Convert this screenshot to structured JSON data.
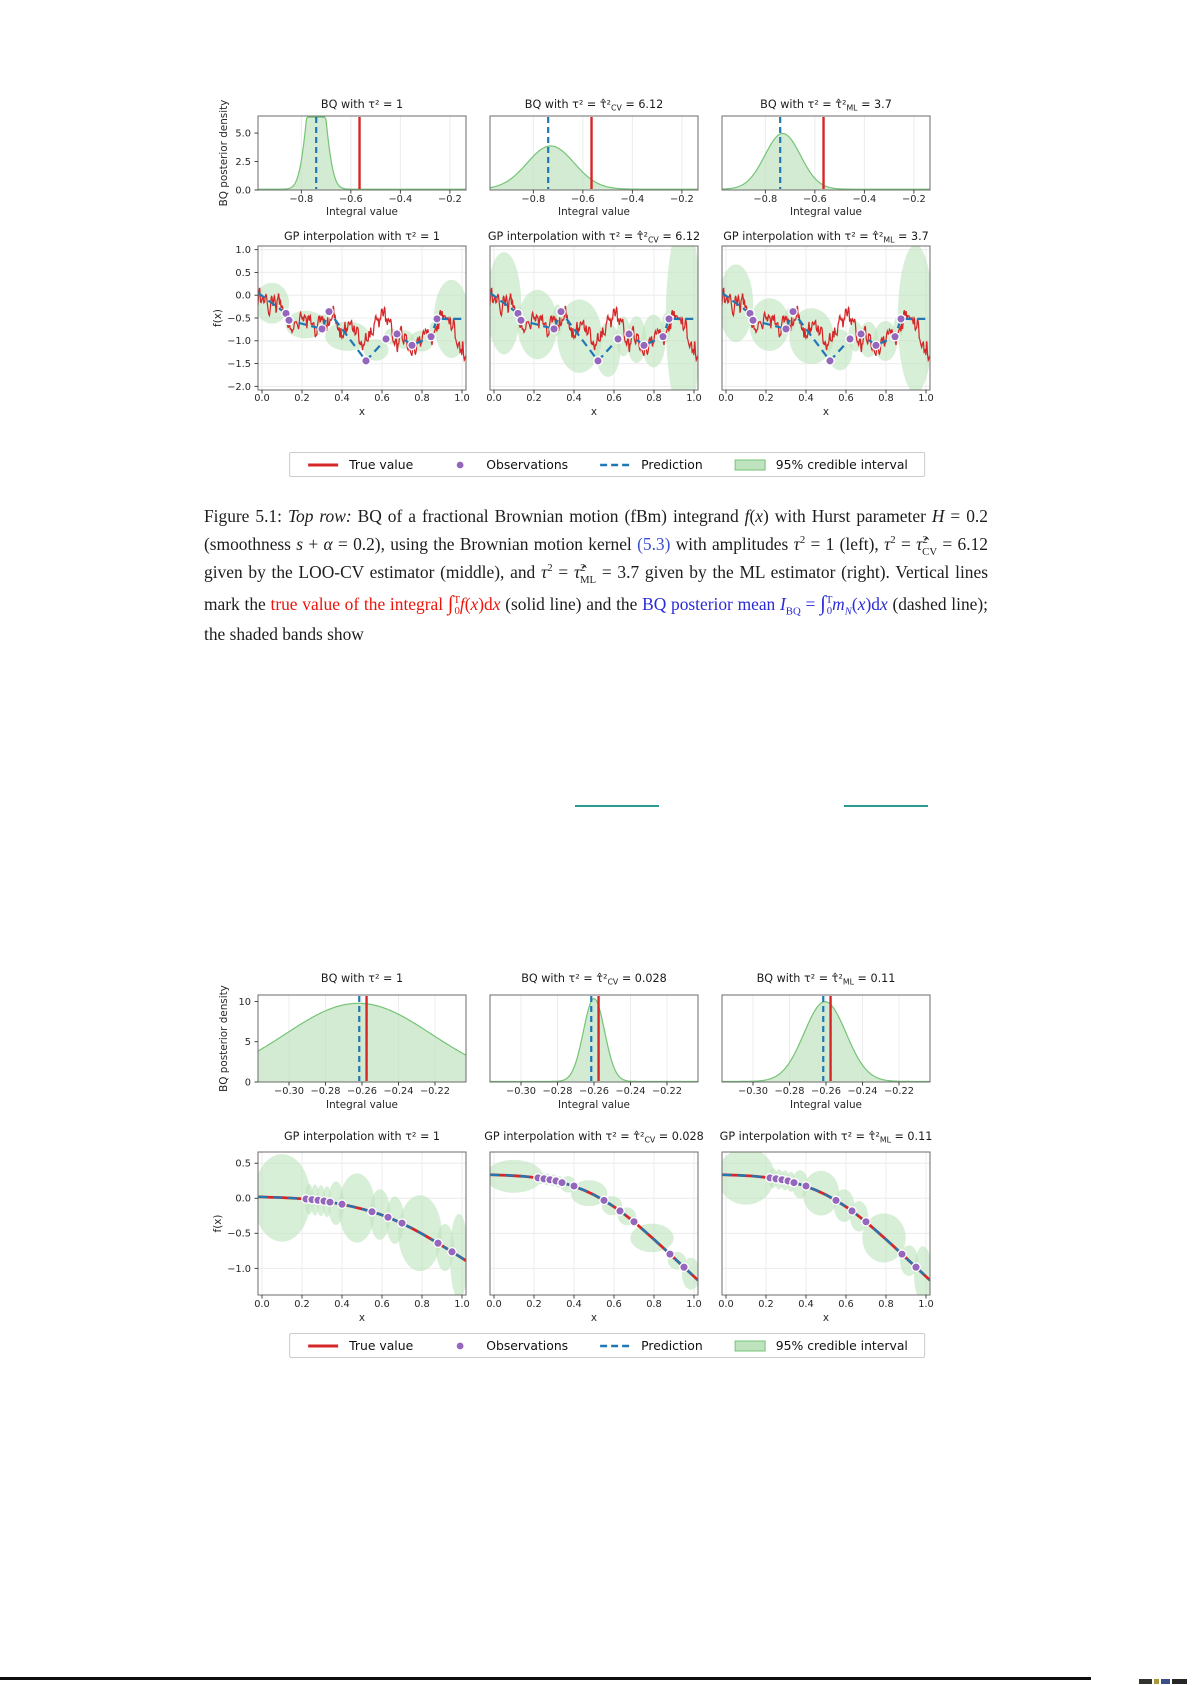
{
  "colors": {
    "true_red": "#d62728",
    "prediction_blue": "#2077b4",
    "observation_purple": "#9467bd",
    "band_green_fill": "#bfe3bf",
    "band_green_edge": "#74c476",
    "caption_red": "#ee1409",
    "caption_blue": "#2a2ad6",
    "link_blue": "#3c50cc",
    "teal_rule": "#2a9d8f",
    "text": "#1d1d1d"
  },
  "legend": {
    "items": [
      {
        "swatch": "line",
        "label": "True value"
      },
      {
        "swatch": "dot",
        "label": "Observations"
      },
      {
        "swatch": "dashes",
        "label": "Prediction"
      },
      {
        "swatch": "patch",
        "label": "95% credible interval"
      }
    ]
  },
  "caption": {
    "segments": [
      {
        "t": "Figure 5.1: ",
        "c": "k",
        "v": "n"
      },
      {
        "t": "Top row:",
        "c": "k",
        "v": "i"
      },
      {
        "t": " BQ of a fractional Brownian motion (fBm) integrand ",
        "c": "k",
        "v": "n"
      },
      {
        "t": "f",
        "c": "k",
        "v": "i"
      },
      {
        "t": "(",
        "c": "k",
        "v": "n"
      },
      {
        "t": "x",
        "c": "k",
        "v": "i"
      },
      {
        "t": ") with Hurst parameter ",
        "c": "k",
        "v": "n"
      },
      {
        "t": "H",
        "c": "k",
        "v": "i"
      },
      {
        "t": " = 0.2 (smoothness ",
        "c": "k",
        "v": "n"
      },
      {
        "t": "s",
        "c": "k",
        "v": "i"
      },
      {
        "t": " + ",
        "c": "k",
        "v": "n"
      },
      {
        "t": "α",
        "c": "k",
        "v": "i"
      },
      {
        "t": " = 0.2), using the Brownian motion kernel ",
        "c": "k",
        "v": "n"
      },
      {
        "t": "(5.3)",
        "c": "link",
        "v": "n"
      },
      {
        "t": " with amplitudes ",
        "c": "k",
        "v": "n"
      },
      {
        "t": "τ",
        "c": "k",
        "v": "i"
      },
      {
        "t": "2",
        "c": "k",
        "v": "sup"
      },
      {
        "t": " = 1 (left), ",
        "c": "k",
        "v": "n"
      },
      {
        "t": "τ",
        "c": "k",
        "v": "i"
      },
      {
        "t": "2",
        "c": "k",
        "v": "sup"
      },
      {
        "t": " = ",
        "c": "k",
        "v": "n"
      },
      {
        "t": "τ̂",
        "c": "k",
        "v": "i"
      },
      {
        "t": "2",
        "c": "k",
        "v": "sup"
      },
      {
        "t": "CV",
        "c": "k",
        "v": "sub"
      },
      {
        "t": " = 6.12 given by the LOO-CV estimator (middle), and ",
        "c": "k",
        "v": "n"
      },
      {
        "t": "τ",
        "c": "k",
        "v": "i"
      },
      {
        "t": "2",
        "c": "k",
        "v": "sup"
      },
      {
        "t": " = ",
        "c": "k",
        "v": "n"
      },
      {
        "t": "τ̂",
        "c": "k",
        "v": "i"
      },
      {
        "t": "2",
        "c": "k",
        "v": "sup"
      },
      {
        "t": "ML",
        "c": "k",
        "v": "sub"
      },
      {
        "t": " = 3.7 given by the ML estimator (right).  Vertical lines mark the ",
        "c": "k",
        "v": "n"
      },
      {
        "t": "true value of the integral ",
        "c": "r",
        "v": "n"
      },
      {
        "t": "∫",
        "c": "r",
        "v": "big"
      },
      {
        "t": "T",
        "c": "r",
        "v": "sup"
      },
      {
        "t": "0",
        "c": "r",
        "v": "sub"
      },
      {
        "t": "f",
        "c": "r",
        "v": "i"
      },
      {
        "t": "(",
        "c": "r",
        "v": "n"
      },
      {
        "t": "x",
        "c": "r",
        "v": "i"
      },
      {
        "t": ")d",
        "c": "r",
        "v": "n"
      },
      {
        "t": "x",
        "c": "r",
        "v": "i"
      },
      {
        "t": " (solid line) and the ",
        "c": "k",
        "v": "n"
      },
      {
        "t": "BQ posterior mean ",
        "c": "b",
        "v": "n"
      },
      {
        "t": "I",
        "c": "b",
        "v": "i"
      },
      {
        "t": "BQ",
        "c": "b",
        "v": "sub"
      },
      {
        "t": " = ",
        "c": "b",
        "v": "n"
      },
      {
        "t": "∫",
        "c": "b",
        "v": "big"
      },
      {
        "t": "T",
        "c": "b",
        "v": "sup"
      },
      {
        "t": "0",
        "c": "b",
        "v": "sub"
      },
      {
        "t": "m",
        "c": "b",
        "v": "i"
      },
      {
        "t": "N",
        "c": "b",
        "v": "subi"
      },
      {
        "t": "(",
        "c": "b",
        "v": "n"
      },
      {
        "t": "x",
        "c": "b",
        "v": "i"
      },
      {
        "t": ")d",
        "c": "b",
        "v": "n"
      },
      {
        "t": "x",
        "c": "b",
        "v": "i"
      },
      {
        "t": " (dashed line); the shaded bands show",
        "c": "k",
        "v": "n"
      }
    ]
  },
  "chart_data": [
    {
      "key": "top-figure",
      "bq_row": {
        "type": "area",
        "xlabel": "Integral value",
        "ylabel": "BQ posterior density",
        "xlim": [
          -0.975,
          -0.135
        ],
        "xticks": [
          -0.8,
          -0.6,
          -0.4,
          -0.2
        ],
        "xtick_labels": [
          "−0.8",
          "−0.6",
          "−0.4",
          "−0.2"
        ],
        "ylim": [
          0,
          6.5
        ],
        "yticks": [
          0,
          2.5,
          5
        ],
        "ytick_labels": [
          "0.0",
          "2.5",
          "5.0"
        ],
        "true_value_x": -0.565,
        "posterior_mean_x": -0.74,
        "panels": [
          {
            "title": {
              "pre": "BQ with τ² = 1"
            },
            "density": {
              "mu": -0.74,
              "sigma": 0.034,
              "peak": 12
            }
          },
          {
            "title": {
              "pre": "BQ with τ² = ",
              "hat": "τ̂²",
              "sub": "CV",
              "post": " = 6.12"
            },
            "density": {
              "mu": -0.73,
              "sigma": 0.095,
              "peak": 3.8
            }
          },
          {
            "title": {
              "pre": "BQ with τ² = ",
              "hat": "τ̂²",
              "sub": "ML",
              "post": " = 3.7"
            },
            "density": {
              "mu": -0.73,
              "sigma": 0.072,
              "peak": 4.9
            }
          }
        ]
      },
      "gp_row": {
        "type": "line",
        "xlabel": "x",
        "ylabel": "f(x)",
        "xlim": [
          -0.02,
          1.02
        ],
        "xticks": [
          0,
          0.2,
          0.4,
          0.6,
          0.8,
          1
        ],
        "xtick_labels": [
          "0.0",
          "0.2",
          "0.4",
          "0.6",
          "0.8",
          "1.0"
        ],
        "ylim": [
          -2.08,
          1.08
        ],
        "yticks": [
          1,
          0.5,
          0,
          -0.5,
          -1,
          -1.5,
          -2
        ],
        "ytick_labels": [
          "1.0",
          "0.5",
          "0.0",
          "−0.5",
          "−1.0",
          "−1.5",
          "−2.0"
        ],
        "observations": [
          [
            0.12,
            -0.4
          ],
          [
            0.135,
            -0.55
          ],
          [
            0.3,
            -0.74
          ],
          [
            0.335,
            -0.36
          ],
          [
            0.52,
            -1.44
          ],
          [
            0.62,
            -0.96
          ],
          [
            0.675,
            -0.85
          ],
          [
            0.75,
            -1.1
          ],
          [
            0.845,
            -0.91
          ],
          [
            0.875,
            -0.52
          ]
        ],
        "prediction": [
          [
            -0.02,
            0.05
          ],
          [
            0.12,
            -0.4
          ],
          [
            0.135,
            -0.55
          ],
          [
            0.3,
            -0.74
          ],
          [
            0.335,
            -0.36
          ],
          [
            0.52,
            -1.44
          ],
          [
            0.62,
            -0.96
          ],
          [
            0.675,
            -0.85
          ],
          [
            0.75,
            -1.1
          ],
          [
            0.845,
            -0.91
          ],
          [
            0.875,
            -0.52
          ],
          [
            1.02,
            -0.52
          ]
        ],
        "true_path": {
          "kind": "fbm",
          "seed": 20,
          "noise_amp": 0.5,
          "base": [
            [
              -0.02,
              0.05
            ],
            [
              0.04,
              -0.1
            ],
            [
              0.08,
              -0.25
            ],
            [
              0.12,
              -0.4
            ],
            [
              0.16,
              -0.5
            ],
            [
              0.2,
              -0.65
            ],
            [
              0.24,
              -0.45
            ],
            [
              0.28,
              -0.6
            ],
            [
              0.32,
              -0.5
            ],
            [
              0.36,
              -0.45
            ],
            [
              0.4,
              -0.75
            ],
            [
              0.44,
              -0.9
            ],
            [
              0.48,
              -1.1
            ],
            [
              0.52,
              -1.25
            ],
            [
              0.56,
              -1.0
            ],
            [
              0.6,
              -0.9
            ],
            [
              0.64,
              -0.75
            ],
            [
              0.68,
              -0.9
            ],
            [
              0.72,
              -1.05
            ],
            [
              0.76,
              -1.0
            ],
            [
              0.8,
              -0.85
            ],
            [
              0.84,
              -0.75
            ],
            [
              0.88,
              -0.6
            ],
            [
              0.92,
              -0.7
            ],
            [
              0.96,
              -1.0
            ],
            [
              1.02,
              -1.6
            ]
          ]
        },
        "edge_scale": [
          1.6,
          3
        ],
        "panels": [
          {
            "title": {
              "pre": "GP interpolation with τ² = 1"
            },
            "band_amp": 0.5
          },
          {
            "title": {
              "pre": "GP interpolation with τ² = ",
              "hat": "τ̂²",
              "sub": "CV",
              "post": " = 6.12"
            },
            "band_amp": 1.25
          },
          {
            "title": {
              "pre": "GP interpolation with τ² = ",
              "hat": "τ̂²",
              "sub": "ML",
              "post": " = 3.7"
            },
            "band_amp": 0.95
          }
        ]
      }
    },
    {
      "key": "bottom-figure",
      "bq_row": {
        "type": "area",
        "xlabel": "Integral value",
        "ylabel": "BQ posterior density",
        "xlim": [
          -0.317,
          -0.203
        ],
        "xticks": [
          -0.3,
          -0.28,
          -0.26,
          -0.24,
          -0.22
        ],
        "xtick_labels": [
          "−0.30",
          "−0.28",
          "−0.26",
          "−0.24",
          "−0.22"
        ],
        "ylim": [
          0,
          10.8
        ],
        "yticks": [
          0,
          5,
          10
        ],
        "ytick_labels": [
          "0",
          "5",
          "10"
        ],
        "true_value_x": -0.2575,
        "posterior_mean_x": -0.2615,
        "panels": [
          {
            "title": {
              "pre": "BQ with τ² = 1"
            },
            "density": {
              "mu": -0.262,
              "sigma": 0.04,
              "peak": 9.7
            }
          },
          {
            "title": {
              "pre": "BQ with τ² = ",
              "hat": "τ̂²",
              "sub": "CV",
              "post": " = 0.028"
            },
            "density": {
              "mu": -0.26,
              "sigma": 0.0058,
              "peak": 10.3
            }
          },
          {
            "title": {
              "pre": "BQ with τ² = ",
              "hat": "τ̂²",
              "sub": "ML",
              "post": " = 0.11"
            },
            "density": {
              "mu": -0.2605,
              "sigma": 0.0115,
              "peak": 9.9
            }
          }
        ]
      },
      "gp_row": {
        "type": "line",
        "xlabel": "x",
        "ylabel": "f(x)",
        "xlim": [
          -0.02,
          1.02
        ],
        "xticks": [
          0,
          0.2,
          0.4,
          0.6,
          0.8,
          1
        ],
        "xtick_labels": [
          "0.0",
          "0.2",
          "0.4",
          "0.6",
          "0.8",
          "1.0"
        ],
        "ylim": [
          -1.38,
          0.66
        ],
        "yticks": [
          0.5,
          0,
          -0.5,
          -1
        ],
        "ytick_labels": [
          "0.5",
          "0.0",
          "−0.5",
          "−1.0"
        ],
        "obs_x": [
          0.22,
          0.25,
          0.28,
          0.31,
          0.34,
          0.4,
          0.55,
          0.63,
          0.7,
          0.88,
          0.95
        ],
        "true_path": {
          "kind": "smooth"
        },
        "edge_scale": [
          1.0,
          1.8
        ],
        "curve_main": [
          [
            -0.02,
            0.335
          ],
          [
            0.1,
            0.325
          ],
          [
            0.2,
            0.3
          ],
          [
            0.3,
            0.255
          ],
          [
            0.4,
            0.175
          ],
          [
            0.5,
            0.055
          ],
          [
            0.6,
            -0.115
          ],
          [
            0.7,
            -0.335
          ],
          [
            0.8,
            -0.585
          ],
          [
            0.9,
            -0.85
          ],
          [
            1.02,
            -1.17
          ]
        ],
        "curve_left": [
          [
            -0.02,
            0.02
          ],
          [
            0.1,
            0.01
          ],
          [
            0.2,
            -0.005
          ],
          [
            0.3,
            -0.035
          ],
          [
            0.4,
            -0.085
          ],
          [
            0.5,
            -0.15
          ],
          [
            0.6,
            -0.235
          ],
          [
            0.7,
            -0.355
          ],
          [
            0.8,
            -0.505
          ],
          [
            0.9,
            -0.675
          ],
          [
            1.02,
            -0.89
          ]
        ],
        "panels": [
          {
            "title": {
              "pre": "GP interpolation with τ² = 1"
            },
            "band_amp": 0.85,
            "curve": "curve_left"
          },
          {
            "title": {
              "pre": "GP interpolation with τ² = ",
              "hat": "τ̂²",
              "sub": "CV",
              "post": " = 0.028"
            },
            "band_amp": 0.32,
            "curve": "curve_main"
          },
          {
            "title": {
              "pre": "GP interpolation with τ² = ",
              "hat": "τ̂²",
              "sub": "ML",
              "post": " = 0.11"
            },
            "band_amp": 0.55,
            "curve": "curve_main"
          }
        ]
      }
    }
  ]
}
